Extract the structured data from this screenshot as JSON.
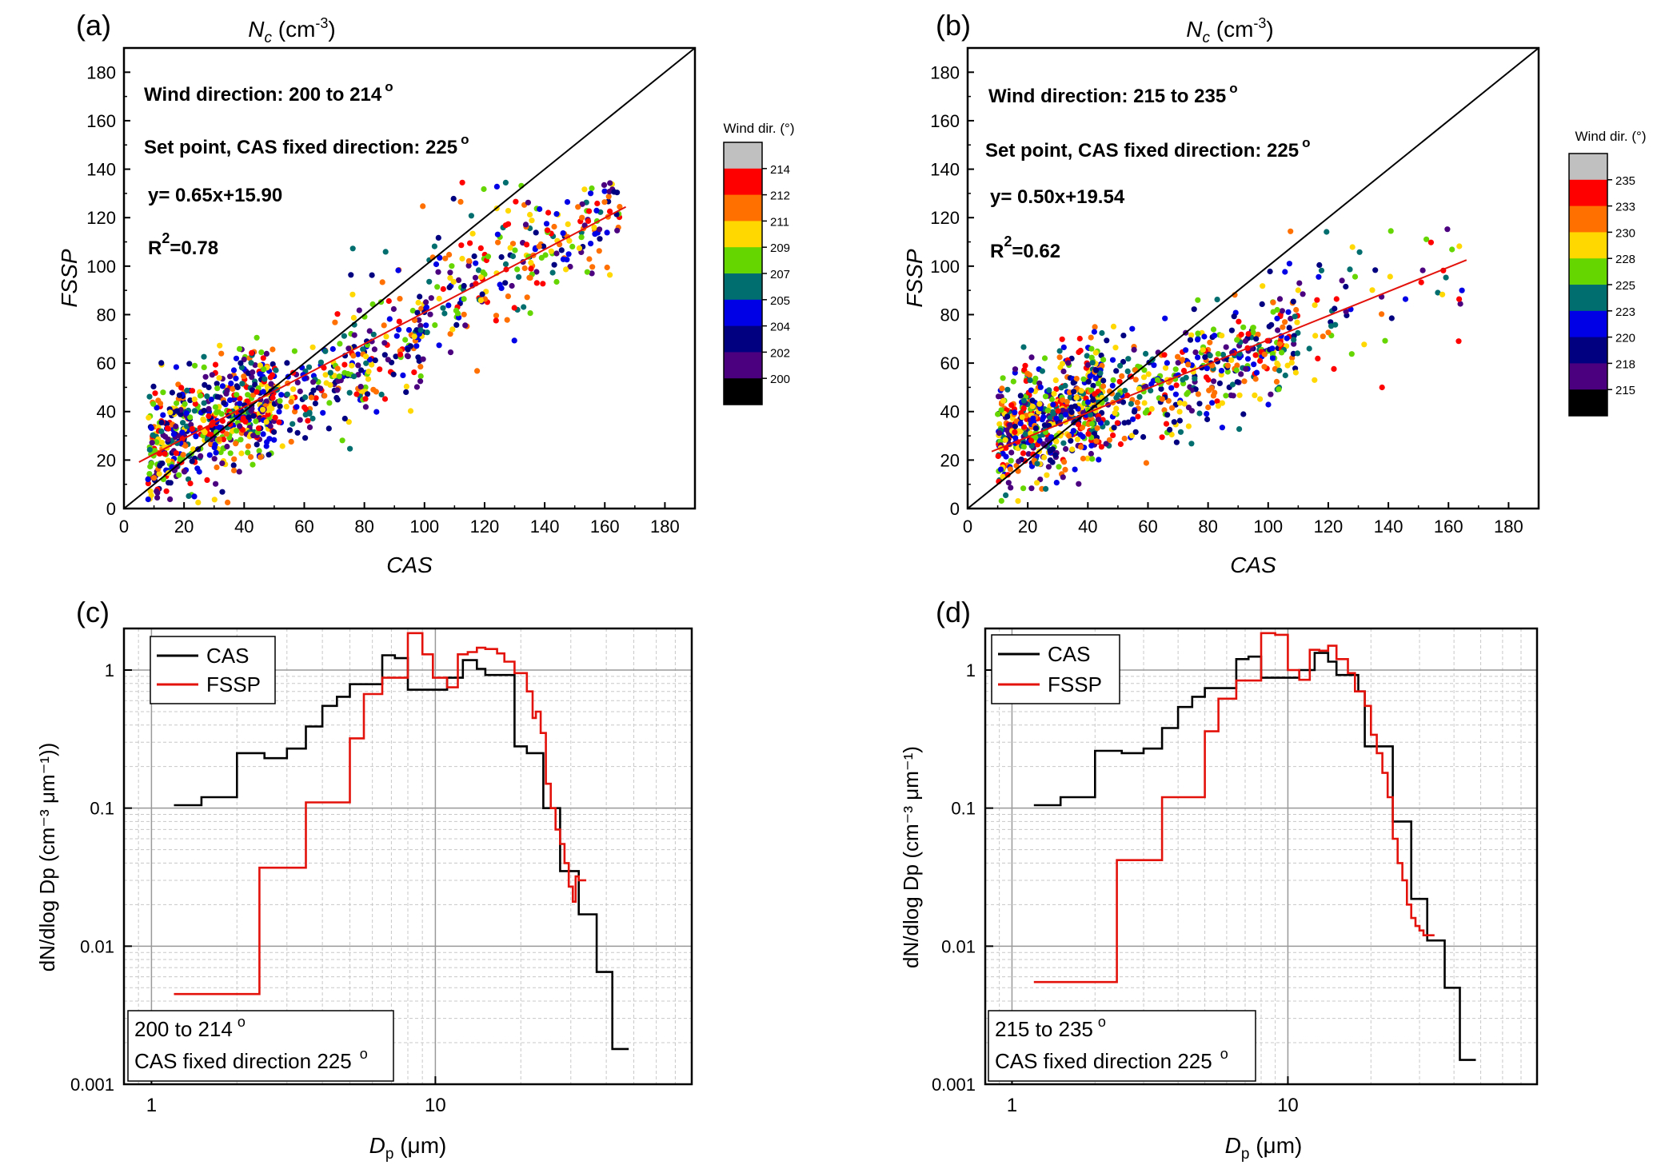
{
  "figure": {
    "panels": [
      {
        "panel_label": "(a)",
        "top_title": "N",
        "top_title_sub": "c",
        "top_title_unit": " (cm",
        "top_title_exp": "-3",
        "top_title_close": ")",
        "xlabel": "CAS",
        "ylabel": "FSSP",
        "ann_wind": "Wind direction: 200 to 214",
        "ann_setpoint": "Set point, CAS fixed direction: 225",
        "degree_mark": "o",
        "ann_eq": "y= 0.65x+15.90",
        "ann_r2_main": "R",
        "ann_r2_exp": "2",
        "ann_r2_val": "=0.78",
        "colorbar_title": "Wind dir. (°)",
        "colorbar_ticks": [
          "214",
          "212",
          "211",
          "209",
          "207",
          "205",
          "204",
          "202",
          "200"
        ]
      },
      {
        "panel_label": "(b)",
        "top_title": "N",
        "top_title_sub": "c",
        "top_title_unit": " (cm",
        "top_title_exp": "-3",
        "top_title_close": ")",
        "xlabel": "CAS",
        "ylabel": "FSSP",
        "ann_wind": "Wind direction: 215 to 235",
        "ann_setpoint": "Set point, CAS fixed direction: 225",
        "degree_mark": "o",
        "ann_eq": "y= 0.50x+19.54",
        "ann_r2_main": "R",
        "ann_r2_exp": "2",
        "ann_r2_val": "=0.62",
        "colorbar_title": "Wind dir. (°)",
        "colorbar_ticks": [
          "235",
          "233",
          "230",
          "228",
          "225",
          "223",
          "220",
          "218",
          "215"
        ]
      },
      {
        "panel_label": "(c)",
        "xlabel_main": "D",
        "xlabel_sub": "p",
        "xlabel_unit": " (μm)",
        "ylabel": "dN/dlog Dp (cm⁻³ μm⁻¹))",
        "legend": [
          "CAS",
          "FSSP"
        ],
        "box_line1": "200 to 214",
        "box_deg1": "o",
        "box_line2": "CAS fixed direction 225",
        "box_deg2": "o"
      },
      {
        "panel_label": "(d)",
        "xlabel_main": "D",
        "xlabel_sub": "p",
        "xlabel_unit": " (μm)",
        "ylabel": "dN/dlog Dp (cm⁻³ μm⁻¹)",
        "legend": [
          "CAS",
          "FSSP"
        ],
        "box_line1": "215 to 235",
        "box_deg1": "o",
        "box_line2": "CAS fixed direction 225",
        "box_deg2": "o"
      }
    ]
  },
  "colors": {
    "cas_line": "#000000",
    "fssp_line": "#e3120b",
    "fit_line": "#e3120b",
    "one_to_one": "#000000",
    "colorbar": [
      "#c0c0c0",
      "#ff0000",
      "#ff7000",
      "#ffd800",
      "#66d600",
      "#006e6e",
      "#0000e6",
      "#000080",
      "#4b0080",
      "#000000"
    ]
  },
  "chart_data": [
    {
      "type": "scatter",
      "panel": "(a)",
      "xlabel": "CAS",
      "ylabel": "FSSP",
      "xlim": [
        0,
        190
      ],
      "ylim": [
        0,
        190
      ],
      "xticks": [
        0,
        20,
        40,
        60,
        80,
        100,
        120,
        140,
        160,
        180
      ],
      "yticks": [
        0,
        20,
        40,
        60,
        80,
        100,
        120,
        140,
        160,
        180
      ],
      "fit": {
        "slope": 0.65,
        "intercept": 15.9,
        "x_range": [
          5,
          167
        ]
      },
      "one_to_one": true,
      "color_levels": [
        200,
        202,
        204,
        205,
        207,
        209,
        211,
        212,
        214
      ],
      "clusters": [
        {
          "x": [
            8,
            50
          ],
          "y_center": 36,
          "spread": 11,
          "n": 560
        },
        {
          "x": [
            40,
            100
          ],
          "y_center": 52,
          "spread": 9,
          "n": 280
        },
        {
          "x": [
            100,
            165
          ],
          "y_center": 105,
          "spread": 11,
          "n": 230
        },
        {
          "x": [
            70,
            140
          ],
          "y_center": 110,
          "spread": 12,
          "n": 30
        }
      ]
    },
    {
      "type": "scatter",
      "panel": "(b)",
      "xlabel": "CAS",
      "ylabel": "FSSP",
      "xlim": [
        0,
        190
      ],
      "ylim": [
        0,
        190
      ],
      "xticks": [
        0,
        20,
        40,
        60,
        80,
        100,
        120,
        140,
        160,
        180
      ],
      "yticks": [
        0,
        20,
        40,
        60,
        80,
        100,
        120,
        140,
        160,
        180
      ],
      "fit": {
        "slope": 0.5,
        "intercept": 19.54,
        "x_range": [
          8,
          166
        ]
      },
      "one_to_one": true,
      "color_levels": [
        215,
        218,
        220,
        223,
        225,
        228,
        230,
        233,
        235
      ],
      "clusters": [
        {
          "x": [
            10,
            45
          ],
          "y_center": 38,
          "spread": 12,
          "n": 560
        },
        {
          "x": [
            40,
            110
          ],
          "y_center": 55,
          "spread": 11,
          "n": 420
        },
        {
          "x": [
            100,
            165
          ],
          "y_center": 85,
          "spread": 14,
          "n": 70
        }
      ]
    },
    {
      "type": "line",
      "panel": "(c)",
      "scale": "log-log",
      "xlim": [
        0.8,
        80
      ],
      "ylim": [
        0.001,
        2
      ],
      "xticks": [
        1,
        10
      ],
      "yticks": [
        0.001,
        0.01,
        0.1,
        1
      ],
      "series": [
        {
          "name": "CAS",
          "steps": [
            [
              1.2,
              0.105
            ],
            [
              1.5,
              0.12
            ],
            [
              2.0,
              0.25
            ],
            [
              2.5,
              0.23
            ],
            [
              3.0,
              0.27
            ],
            [
              3.5,
              0.39
            ],
            [
              4.0,
              0.55
            ],
            [
              4.5,
              0.64
            ],
            [
              5.0,
              0.79
            ],
            [
              6.0,
              0.79
            ],
            [
              6.5,
              1.28
            ],
            [
              7.2,
              1.22
            ],
            [
              8.0,
              0.72
            ],
            [
              10.0,
              0.72
            ],
            [
              11.0,
              0.88
            ],
            [
              12.5,
              1.18
            ],
            [
              14.0,
              1.02
            ],
            [
              15.0,
              0.92
            ],
            [
              19.0,
              0.28
            ],
            [
              21.0,
              0.25
            ],
            [
              24.0,
              0.1
            ],
            [
              26.0,
              0.1
            ],
            [
              27.5,
              0.035
            ],
            [
              32.0,
              0.017
            ],
            [
              37.0,
              0.0065
            ],
            [
              42.0,
              0.0018
            ],
            [
              48.0,
              0.0018
            ]
          ]
        },
        {
          "name": "FSSP",
          "steps": [
            [
              1.2,
              0.0045
            ],
            [
              2.4,
              0.037
            ],
            [
              3.5,
              0.11
            ],
            [
              5.0,
              0.32
            ],
            [
              5.6,
              0.67
            ],
            [
              6.5,
              0.88
            ],
            [
              8.0,
              1.85
            ],
            [
              9.0,
              1.3
            ],
            [
              9.8,
              0.88
            ],
            [
              11.0,
              0.75
            ],
            [
              12.0,
              1.3
            ],
            [
              13.0,
              1.35
            ],
            [
              14.0,
              1.45
            ],
            [
              15.0,
              1.42
            ],
            [
              16.5,
              1.32
            ],
            [
              17.5,
              1.15
            ],
            [
              19.0,
              0.95
            ],
            [
              21.0,
              0.7
            ],
            [
              22.0,
              0.45
            ],
            [
              22.6,
              0.5
            ],
            [
              23.5,
              0.35
            ],
            [
              24.5,
              0.15
            ],
            [
              25.5,
              0.1
            ],
            [
              26.5,
              0.07
            ],
            [
              27.5,
              0.055
            ],
            [
              28.5,
              0.04
            ],
            [
              29.5,
              0.027
            ],
            [
              30.5,
              0.021
            ],
            [
              31.2,
              0.032
            ],
            [
              32.0,
              0.03
            ],
            [
              34.0,
              0.03
            ]
          ]
        }
      ]
    },
    {
      "type": "line",
      "panel": "(d)",
      "scale": "log-log",
      "xlim": [
        0.8,
        80
      ],
      "ylim": [
        0.001,
        2
      ],
      "xticks": [
        1,
        10
      ],
      "yticks": [
        0.001,
        0.01,
        0.1,
        1
      ],
      "series": [
        {
          "name": "CAS",
          "steps": [
            [
              1.2,
              0.105
            ],
            [
              1.5,
              0.12
            ],
            [
              2.0,
              0.26
            ],
            [
              2.5,
              0.25
            ],
            [
              3.0,
              0.27
            ],
            [
              3.5,
              0.38
            ],
            [
              4.0,
              0.54
            ],
            [
              4.5,
              0.64
            ],
            [
              5.0,
              0.74
            ],
            [
              6.0,
              0.74
            ],
            [
              6.5,
              1.2
            ],
            [
              7.2,
              1.25
            ],
            [
              8.0,
              0.88
            ],
            [
              10.0,
              0.88
            ],
            [
              11.0,
              1.0
            ],
            [
              12.5,
              1.33
            ],
            [
              14.0,
              1.15
            ],
            [
              15.0,
              0.92
            ],
            [
              18.0,
              0.7
            ],
            [
              19.0,
              0.28
            ],
            [
              22.0,
              0.28
            ],
            [
              24.0,
              0.08
            ],
            [
              26.0,
              0.08
            ],
            [
              28.0,
              0.022
            ],
            [
              32.0,
              0.011
            ],
            [
              37.0,
              0.005
            ],
            [
              42.0,
              0.0015
            ],
            [
              48.0,
              0.0015
            ]
          ]
        },
        {
          "name": "FSSP",
          "steps": [
            [
              1.2,
              0.0055
            ],
            [
              2.4,
              0.042
            ],
            [
              3.5,
              0.12
            ],
            [
              5.0,
              0.36
            ],
            [
              5.6,
              0.62
            ],
            [
              6.5,
              0.84
            ],
            [
              8.0,
              1.85
            ],
            [
              9.0,
              1.8
            ],
            [
              10.0,
              1.0
            ],
            [
              11.0,
              0.85
            ],
            [
              12.0,
              1.4
            ],
            [
              13.0,
              1.38
            ],
            [
              14.0,
              1.5
            ],
            [
              15.0,
              1.2
            ],
            [
              16.5,
              0.95
            ],
            [
              17.5,
              0.7
            ],
            [
              19.0,
              0.55
            ],
            [
              20.0,
              0.34
            ],
            [
              21.0,
              0.25
            ],
            [
              22.0,
              0.18
            ],
            [
              23.0,
              0.12
            ],
            [
              24.0,
              0.06
            ],
            [
              25.0,
              0.04
            ],
            [
              26.0,
              0.03
            ],
            [
              27.0,
              0.02
            ],
            [
              28.0,
              0.016
            ],
            [
              29.0,
              0.014
            ],
            [
              30.0,
              0.013
            ],
            [
              31.0,
              0.012
            ],
            [
              34.0,
              0.012
            ]
          ]
        }
      ]
    }
  ]
}
